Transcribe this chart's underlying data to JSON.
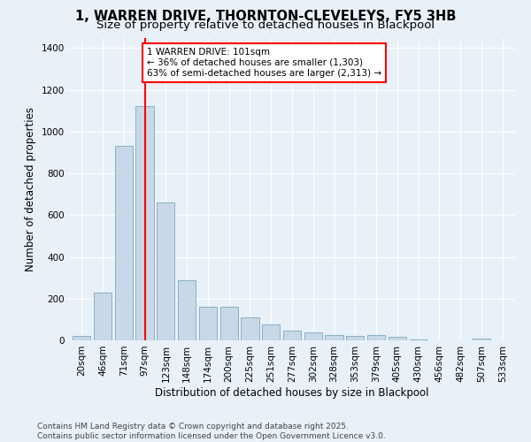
{
  "title_line1": "1, WARREN DRIVE, THORNTON-CLEVELEYS, FY5 3HB",
  "title_line2": "Size of property relative to detached houses in Blackpool",
  "xlabel": "Distribution of detached houses by size in Blackpool",
  "ylabel": "Number of detached properties",
  "categories": [
    "20sqm",
    "46sqm",
    "71sqm",
    "97sqm",
    "123sqm",
    "148sqm",
    "174sqm",
    "200sqm",
    "225sqm",
    "251sqm",
    "277sqm",
    "302sqm",
    "328sqm",
    "353sqm",
    "379sqm",
    "405sqm",
    "430sqm",
    "456sqm",
    "482sqm",
    "507sqm",
    "533sqm"
  ],
  "values": [
    20,
    230,
    930,
    1120,
    660,
    290,
    160,
    160,
    110,
    75,
    45,
    40,
    25,
    20,
    25,
    15,
    5,
    0,
    0,
    8,
    0
  ],
  "bar_color": "#c8d8e8",
  "bar_edge_color": "#7aaabb",
  "vline_x": 3,
  "vline_color": "red",
  "annotation_text": "1 WARREN DRIVE: 101sqm\n← 36% of detached houses are smaller (1,303)\n63% of semi-detached houses are larger (2,313) →",
  "annotation_box_color": "white",
  "annotation_box_edge_color": "red",
  "ylim": [
    0,
    1450
  ],
  "yticks": [
    0,
    200,
    400,
    600,
    800,
    1000,
    1200,
    1400
  ],
  "background_color": "#e8f0f8",
  "grid_color": "white",
  "footnote": "Contains HM Land Registry data © Crown copyright and database right 2025.\nContains public sector information licensed under the Open Government Licence v3.0.",
  "title_fontsize": 10.5,
  "subtitle_fontsize": 9.5,
  "axis_label_fontsize": 8.5,
  "tick_fontsize": 7.5,
  "annotation_fontsize": 7.5,
  "footnote_fontsize": 6.5
}
